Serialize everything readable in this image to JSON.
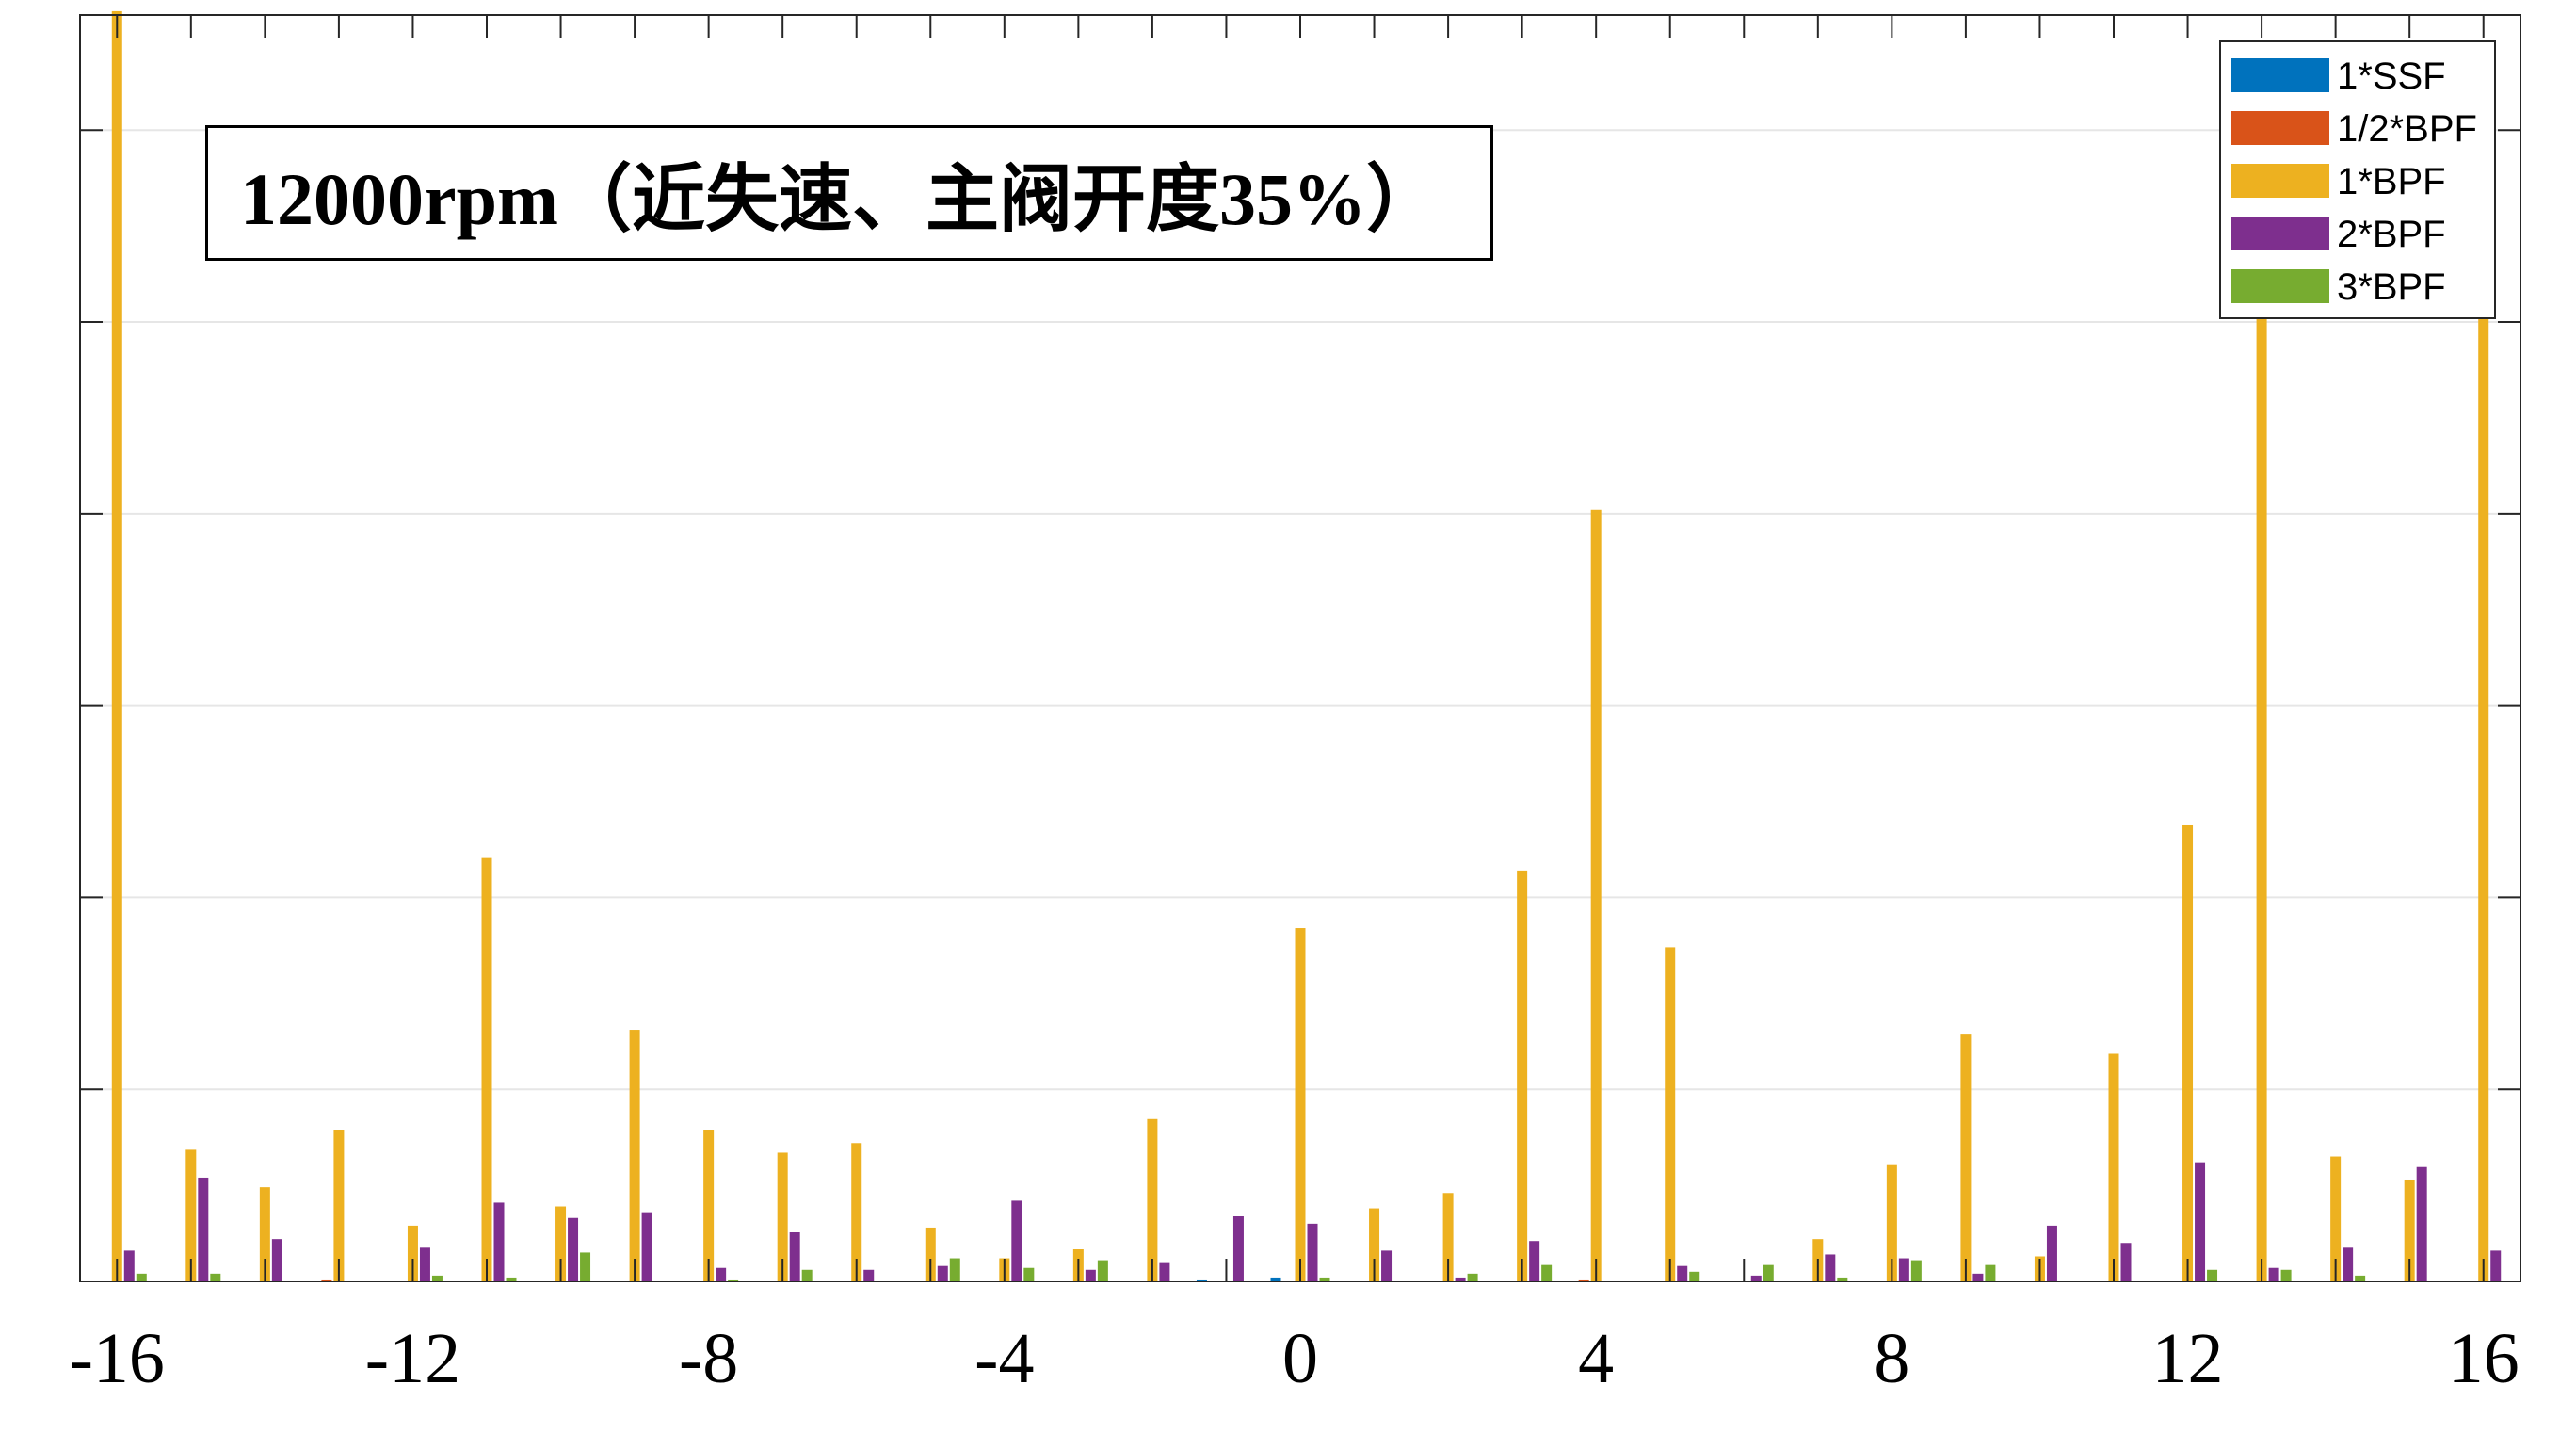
{
  "chart_data": {
    "type": "bar",
    "title": "12000rpm（近失速、主阀开度35%）",
    "xlabel": "",
    "ylabel": "",
    "x": [
      -16,
      -15,
      -14,
      -13,
      -12,
      -11,
      -10,
      -9,
      -8,
      -7,
      -6,
      -5,
      -4,
      -3,
      -2,
      -1,
      0,
      1,
      2,
      3,
      4,
      5,
      6,
      7,
      8,
      9,
      10,
      11,
      12,
      13,
      14,
      15,
      16
    ],
    "xlim": [
      -16.5,
      16.5
    ],
    "ylim": [
      0,
      6.6
    ],
    "xticks": [
      -16,
      -12,
      -8,
      -4,
      0,
      4,
      8,
      12,
      16
    ],
    "xtick_labels": [
      "-16",
      "-12",
      "-8",
      "-4",
      "0",
      "4",
      "8",
      "12",
      "16"
    ],
    "yticks": [
      1,
      2,
      3,
      4,
      5,
      6
    ],
    "ytick_labels": [],
    "grid": true,
    "legend_position": "top-right",
    "series": [
      {
        "name": "1*SSF",
        "color": "#0072BD",
        "values": [
          0,
          0,
          0,
          0,
          0,
          0,
          0,
          0,
          0,
          0,
          0,
          0,
          0,
          0,
          0,
          0.01,
          0.02,
          0,
          0,
          0,
          0,
          0,
          0,
          0,
          0,
          0,
          0,
          0,
          0,
          0,
          0,
          0,
          0
        ]
      },
      {
        "name": "1/2*BPF",
        "color": "#D95319",
        "values": [
          0,
          0,
          0,
          0.01,
          0,
          0,
          0,
          0,
          0,
          0,
          0,
          0,
          0,
          0,
          0,
          0,
          0,
          0,
          0,
          0,
          0.01,
          0,
          0,
          0,
          0,
          0,
          0,
          0,
          0,
          0,
          0,
          0,
          0
        ]
      },
      {
        "name": "1*BPF",
        "color": "#EDB120",
        "values": [
          6.62,
          0.69,
          0.49,
          0.79,
          0.29,
          2.21,
          0.39,
          1.31,
          0.79,
          0.67,
          0.72,
          0.28,
          0.12,
          0.17,
          0.85,
          0,
          1.84,
          0.38,
          0.46,
          2.14,
          4.02,
          1.74,
          0,
          0.22,
          0.61,
          1.29,
          0.13,
          1.19,
          2.38,
          5.5,
          0.65,
          0.53,
          5.4
        ]
      },
      {
        "name": "2*BPF",
        "color": "#7E2F8E",
        "values": [
          0.16,
          0.54,
          0.22,
          0,
          0.18,
          0.41,
          0.33,
          0.36,
          0.07,
          0.26,
          0.06,
          0.08,
          0.42,
          0.06,
          0.1,
          0.34,
          0.3,
          0.16,
          0.02,
          0.21,
          0,
          0.08,
          0.03,
          0.14,
          0.12,
          0.04,
          0.29,
          0.2,
          0.62,
          0.07,
          0.18,
          0.6,
          0.16
        ]
      },
      {
        "name": "3*BPF",
        "color": "#77AC30",
        "values": [
          0.04,
          0.04,
          0,
          0,
          0.03,
          0.02,
          0.15,
          0,
          0.01,
          0.06,
          0,
          0.12,
          0.07,
          0.11,
          0,
          0,
          0.02,
          0,
          0.04,
          0.09,
          0,
          0.05,
          0.09,
          0.02,
          0.11,
          0.09,
          0,
          0,
          0.06,
          0.06,
          0.03,
          0,
          0
        ]
      }
    ]
  }
}
